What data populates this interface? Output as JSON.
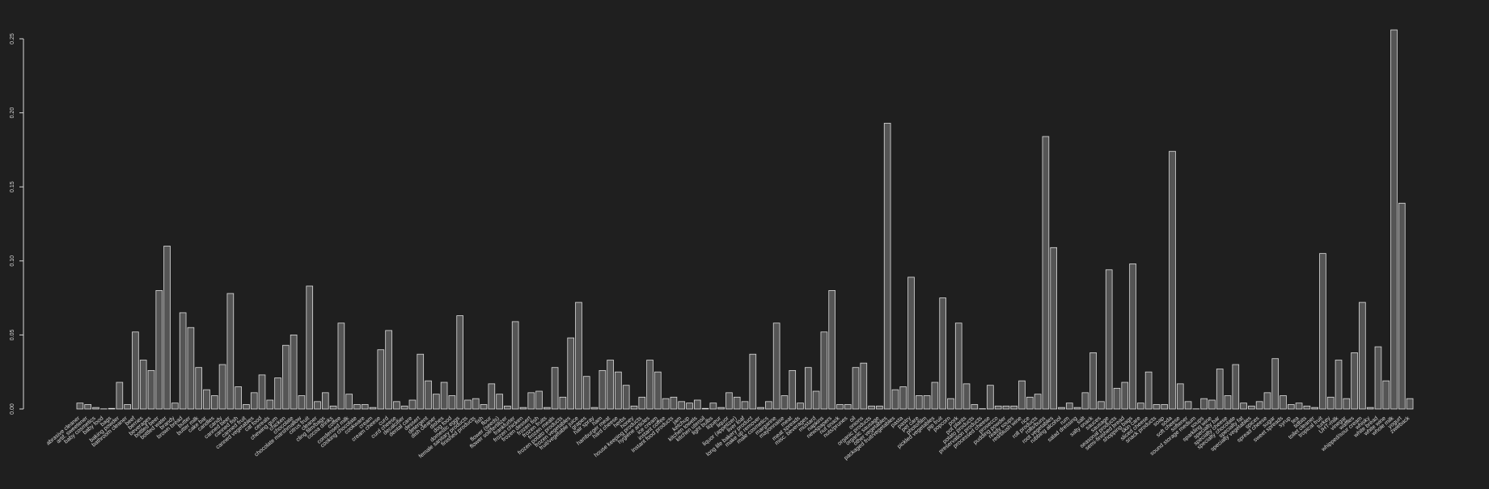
{
  "chart_data": {
    "type": "bar",
    "categories": [
      "abrasive cleaner",
      "artif. sweetener",
      "baby cosmetics",
      "baby food",
      "bags",
      "baking powder",
      "bathroom cleaner",
      "beef",
      "berries",
      "beverages",
      "bottled beer",
      "bottled water",
      "brandy",
      "brown bread",
      "butter",
      "butter milk",
      "cake bar",
      "candles",
      "candy",
      "canned beer",
      "canned fish",
      "canned fruit",
      "canned vegetables",
      "cat food",
      "cereals",
      "chewing gum",
      "chicken",
      "chocolate",
      "chocolate marshmallow",
      "citrus fruit",
      "cleaner",
      "cling film/bags",
      "cocoa drinks",
      "coffee",
      "condensed milk",
      "cooking chocolate",
      "cookware",
      "cream",
      "cream cheese",
      "curd",
      "curd cheese",
      "decalcifier",
      "dental care",
      "dessert",
      "detergent",
      "dish cleaner",
      "dishes",
      "dog food",
      "domestic eggs",
      "female sanitary products",
      "finished products",
      "fish",
      "flour",
      "flower (seeds)",
      "flower soil/fertilizer",
      "frankfurter",
      "frozen chicken",
      "frozen dessert",
      "frozen fish",
      "frozen fruits",
      "frozen meals",
      "frozen potato products",
      "frozen vegetables",
      "fruit/vegetable juice",
      "grapes",
      "hair spray",
      "ham",
      "hamburger meat",
      "hard cheese",
      "herbs",
      "honey",
      "house keeping products",
      "hygiene articles",
      "ice cream",
      "instant coffee",
      "Instant food products",
      "jam",
      "ketchup",
      "kitchen towels",
      "kitchen utensil",
      "light bulbs",
      "liqueur",
      "liquor",
      "liquor (appetizer)",
      "liver loaf",
      "long life bakery product",
      "make up remover",
      "male cosmetics",
      "margarine",
      "mayonnaise",
      "meat",
      "meat spreads",
      "misc. beverages",
      "mustard",
      "napkins",
      "newspapers",
      "nut snack",
      "nuts/prunes",
      "oil",
      "onions",
      "organic products",
      "organic sausage",
      "other vegetables",
      "packaged fruit/vegetables",
      "pasta",
      "pastry",
      "pet care",
      "photo/film",
      "pickled vegetables",
      "pip fruit",
      "popcorn",
      "pork",
      "pot plants",
      "potato products",
      "preservation products",
      "processed cheese",
      "prosecco",
      "pudding powder",
      "ready soups",
      "red/blush wine",
      "rice",
      "roll products",
      "rolls/buns",
      "root vegetables",
      "rubbing alcohol",
      "rum",
      "salad dressing",
      "salt",
      "salty snack",
      "sauces",
      "sausage",
      "seasonal products",
      "semi-finished bread",
      "shopping bags",
      "skin care",
      "sliced cheese",
      "snack products",
      "soap",
      "soda",
      "soft cheese",
      "softener",
      "sound storage medium",
      "soups",
      "sparkling wine",
      "specialty bar",
      "specialty cheese",
      "specialty chocolate",
      "specialty fat",
      "specialty vegetables",
      "spices",
      "spread cheese",
      "sugar",
      "sweet spreads",
      "syrup",
      "tea",
      "tidbits",
      "toilet cleaner",
      "tropical fruit",
      "turkey",
      "UHT-milk",
      "vinegar",
      "waffles",
      "whipped/sour cream",
      "whisky",
      "white bread",
      "white wine",
      "whole milk",
      "yogurt",
      "zwieback"
    ],
    "values": [
      0.004,
      0.003,
      0.001,
      0.0001,
      0.0004,
      0.018,
      0.003,
      0.052,
      0.033,
      0.026,
      0.08,
      0.11,
      0.004,
      0.065,
      0.055,
      0.028,
      0.013,
      0.009,
      0.03,
      0.078,
      0.015,
      0.003,
      0.011,
      0.023,
      0.006,
      0.021,
      0.043,
      0.05,
      0.009,
      0.083,
      0.005,
      0.011,
      0.002,
      0.058,
      0.01,
      0.003,
      0.003,
      0.001,
      0.04,
      0.053,
      0.005,
      0.002,
      0.006,
      0.037,
      0.019,
      0.01,
      0.018,
      0.009,
      0.063,
      0.006,
      0.007,
      0.003,
      0.017,
      0.01,
      0.002,
      0.059,
      0.001,
      0.011,
      0.012,
      0.001,
      0.028,
      0.008,
      0.048,
      0.072,
      0.022,
      0.001,
      0.026,
      0.033,
      0.025,
      0.016,
      0.002,
      0.008,
      0.033,
      0.025,
      0.007,
      0.008,
      0.005,
      0.004,
      0.006,
      0.0004,
      0.004,
      0.001,
      0.011,
      0.008,
      0.005,
      0.037,
      0.001,
      0.005,
      0.058,
      0.009,
      0.026,
      0.004,
      0.028,
      0.012,
      0.052,
      0.08,
      0.003,
      0.003,
      0.028,
      0.031,
      0.002,
      0.002,
      0.193,
      0.013,
      0.015,
      0.089,
      0.009,
      0.009,
      0.018,
      0.075,
      0.007,
      0.058,
      0.017,
      0.003,
      0.0002,
      0.016,
      0.002,
      0.002,
      0.002,
      0.019,
      0.008,
      0.01,
      0.184,
      0.109,
      0.001,
      0.004,
      0.001,
      0.011,
      0.038,
      0.005,
      0.094,
      0.014,
      0.018,
      0.098,
      0.004,
      0.025,
      0.003,
      0.003,
      0.174,
      0.017,
      0.005,
      0.0001,
      0.007,
      0.006,
      0.027,
      0.009,
      0.03,
      0.004,
      0.002,
      0.005,
      0.011,
      0.034,
      0.009,
      0.003,
      0.004,
      0.002,
      0.001,
      0.105,
      0.008,
      0.033,
      0.007,
      0.038,
      0.072,
      0.001,
      0.042,
      0.019,
      0.256,
      0.139,
      0.007
    ],
    "color": "#555555",
    "edge_color": "#dddddd",
    "ylim": [
      0,
      0.25
    ],
    "yticks": [
      {
        "value": 0,
        "label": "0.00"
      },
      {
        "value": 0.05,
        "label": "0.05"
      },
      {
        "value": 0.1,
        "label": "0.10"
      },
      {
        "value": 0.15,
        "label": "0.15"
      },
      {
        "value": 0.2,
        "label": "0.20"
      },
      {
        "value": 0.25,
        "label": "0.25"
      }
    ]
  }
}
